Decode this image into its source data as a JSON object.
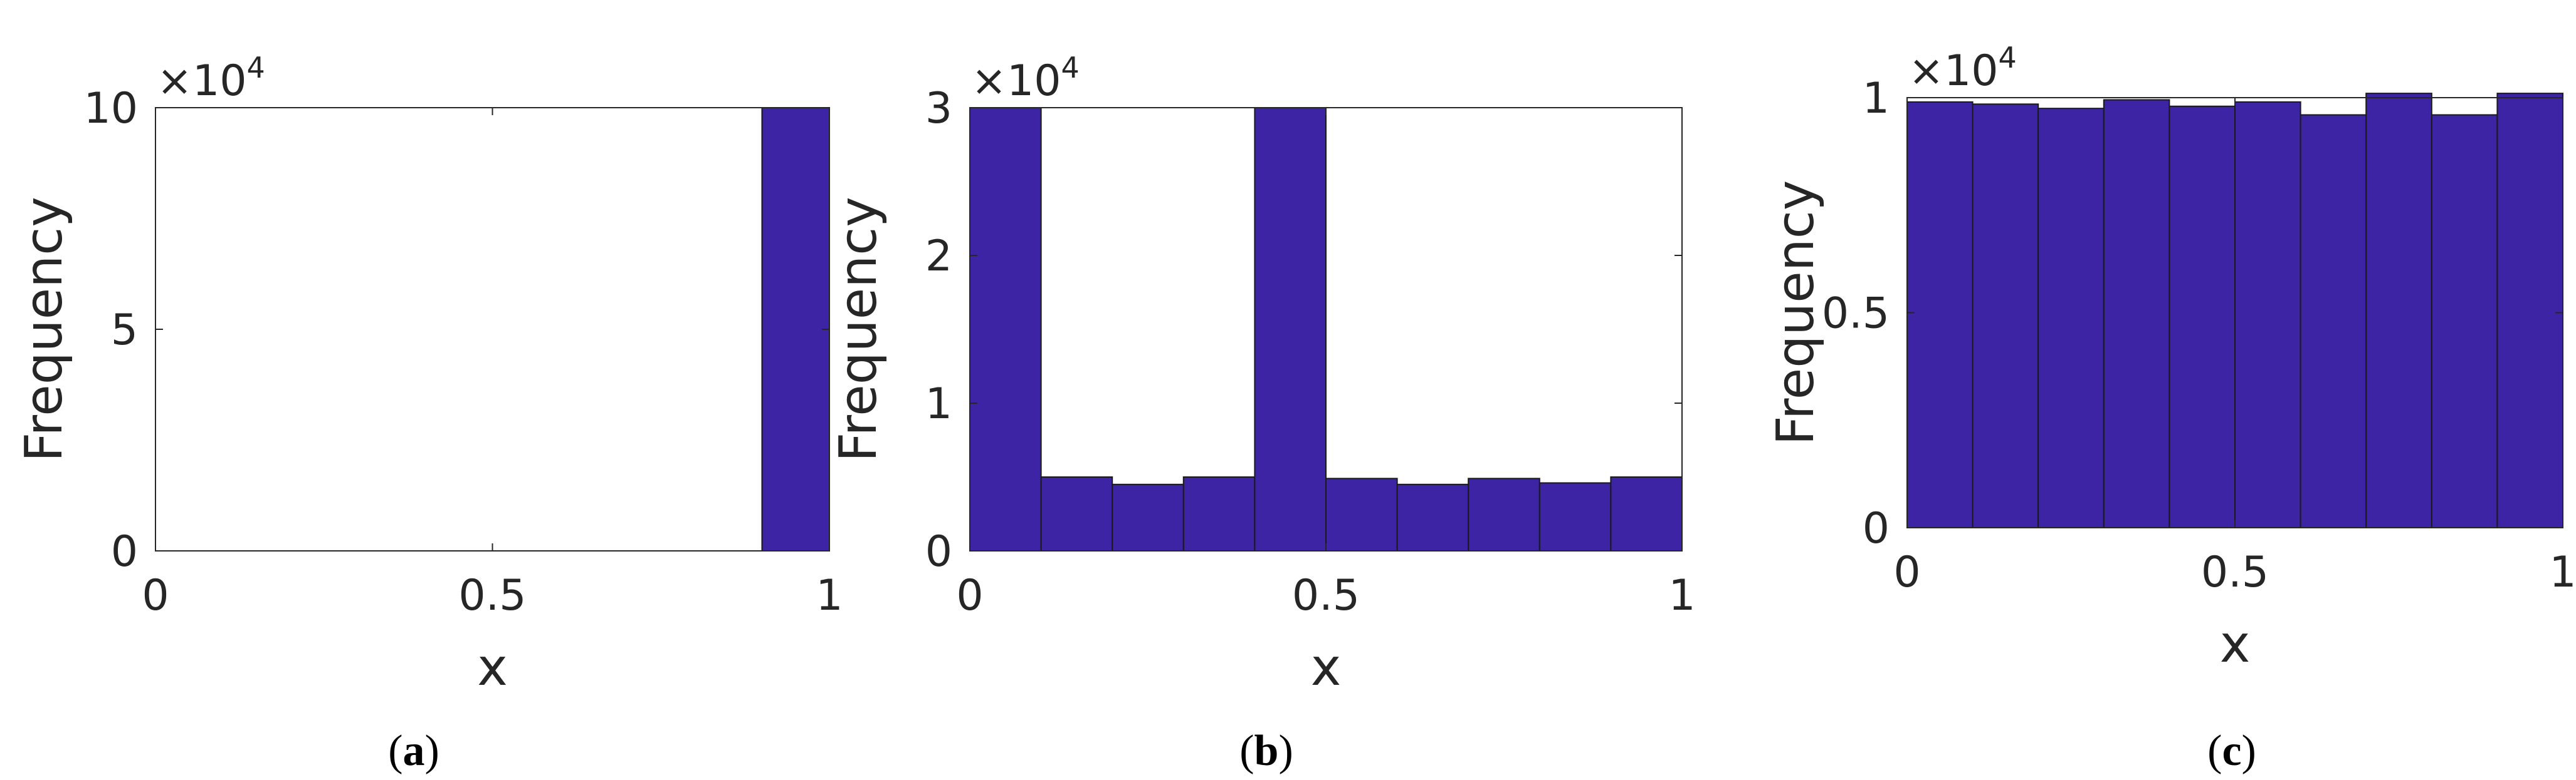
{
  "bar_color": "#3C24A5",
  "bar_edge_color": "#1a1a1a",
  "axis_color": "#262626",
  "chart_data": [
    {
      "type": "bar",
      "caption": "(a)",
      "caption_letter": "a",
      "xlabel": "x",
      "ylabel": "Frequency",
      "exponent_label": "×10",
      "exponent": "4",
      "bin_edges": [
        0,
        0.1,
        0.2,
        0.3,
        0.4,
        0.5,
        0.6,
        0.7,
        0.8,
        0.9,
        1
      ],
      "values": [
        0,
        0,
        0,
        0,
        0,
        0,
        0,
        0,
        0,
        10
      ],
      "xlim": [
        0,
        1
      ],
      "ylim": [
        0,
        10
      ],
      "xticks": [
        0,
        0.5,
        1
      ],
      "xtick_labels": [
        "0",
        "0.5",
        "1"
      ],
      "yticks": [
        0,
        5,
        10
      ],
      "ytick_labels": [
        "0",
        "5",
        "10"
      ]
    },
    {
      "type": "bar",
      "caption": "(b)",
      "caption_letter": "b",
      "xlabel": "x",
      "ylabel": "Frequency",
      "exponent_label": "×10",
      "exponent": "4",
      "bin_edges": [
        0,
        0.1,
        0.2,
        0.3,
        0.4,
        0.5,
        0.6,
        0.7,
        0.8,
        0.9,
        1
      ],
      "values": [
        3.0,
        0.5,
        0.45,
        0.5,
        3.0,
        0.49,
        0.45,
        0.49,
        0.46,
        0.5
      ],
      "xlim": [
        0,
        1
      ],
      "ylim": [
        0,
        3
      ],
      "xticks": [
        0,
        0.5,
        1
      ],
      "xtick_labels": [
        "0",
        "0.5",
        "1"
      ],
      "yticks": [
        0,
        1,
        2,
        3
      ],
      "ytick_labels": [
        "0",
        "1",
        "2",
        "3"
      ]
    },
    {
      "type": "bar",
      "caption": "(c)",
      "caption_letter": "c",
      "xlabel": "x",
      "ylabel": "Frequency",
      "exponent_label": "×10",
      "exponent": "4",
      "bin_edges": [
        0,
        0.1,
        0.2,
        0.3,
        0.4,
        0.5,
        0.6,
        0.7,
        0.8,
        0.9,
        1
      ],
      "values": [
        0.99,
        0.985,
        0.975,
        0.995,
        0.98,
        0.99,
        0.96,
        1.01,
        0.96,
        1.01
      ],
      "xlim": [
        0,
        1
      ],
      "ylim": [
        0,
        1
      ],
      "xticks": [
        0,
        0.5,
        1
      ],
      "xtick_labels": [
        "0",
        "0.5",
        "1"
      ],
      "yticks": [
        0,
        0.5,
        1
      ],
      "ytick_labels": [
        "0",
        "0.5",
        "1"
      ]
    }
  ]
}
